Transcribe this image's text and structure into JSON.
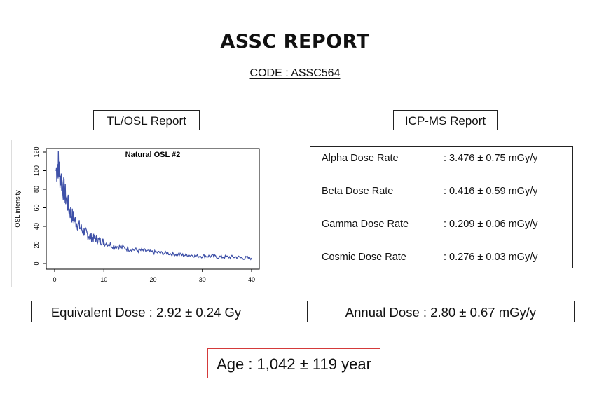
{
  "header": {
    "title": "ASSC REPORT",
    "code": "CODE : ASSC564"
  },
  "tl_osl": {
    "label": "TL/OSL Report"
  },
  "icp_ms": {
    "label": "ICP-MS Report",
    "rows": [
      {
        "label": "Alpha Dose Rate",
        "value": ": 3.476 ± 0.75 mGy/y"
      },
      {
        "label": "Beta Dose Rate",
        "value": ": 0.416 ± 0.59 mGy/y"
      },
      {
        "label": "Gamma Dose Rate",
        "value": ": 0.209 ± 0.06 mGy/y"
      },
      {
        "label": "Cosmic Dose Rate",
        "value": ": 0.276 ± 0.03 mGy/y"
      }
    ]
  },
  "results": {
    "equivalent_dose": "Equivalent Dose : 2.92 ± 0.24 Gy",
    "annual_dose": "Annual Dose : 2.80 ± 0.67 mGy/y",
    "age": "Age : 1,042 ± 119 year"
  },
  "colors": {
    "line": "#3f51a8",
    "age_border": "#d43a3a"
  },
  "chart_data": {
    "type": "line",
    "title": "Natural OSL #2",
    "xlabel": "",
    "ylabel": "OSL intensity",
    "xlim": [
      0,
      40
    ],
    "ylim": [
      0,
      120
    ],
    "xticks": [
      0,
      10,
      20,
      30,
      40
    ],
    "yticks": [
      0,
      20,
      40,
      60,
      80,
      100,
      120
    ],
    "grid": false,
    "series": [
      {
        "x": [
          0.3,
          0.7,
          1,
          1.5,
          2,
          2.5,
          3,
          3.5,
          4,
          4.5,
          5,
          5.5,
          6,
          6.5,
          7,
          7.5,
          8,
          8.5,
          9,
          9.5,
          10,
          11,
          12,
          13,
          14,
          15,
          16,
          17,
          18,
          19,
          20,
          21,
          22,
          23,
          24,
          25,
          26,
          27,
          28,
          29,
          30,
          31,
          32,
          33,
          34,
          35,
          36,
          37,
          38,
          39,
          40
        ],
        "y": [
          100,
          108,
          98,
          88,
          76,
          68,
          58,
          52,
          47,
          44,
          40,
          37,
          34,
          32,
          30,
          28,
          27,
          26,
          25,
          24,
          23,
          21,
          19,
          18,
          17,
          16,
          15,
          14,
          14,
          13,
          12,
          12,
          11,
          11,
          10,
          10,
          9,
          9,
          9,
          8,
          8,
          8,
          8,
          7,
          7,
          7,
          7,
          7,
          6,
          6,
          6
        ]
      }
    ]
  }
}
